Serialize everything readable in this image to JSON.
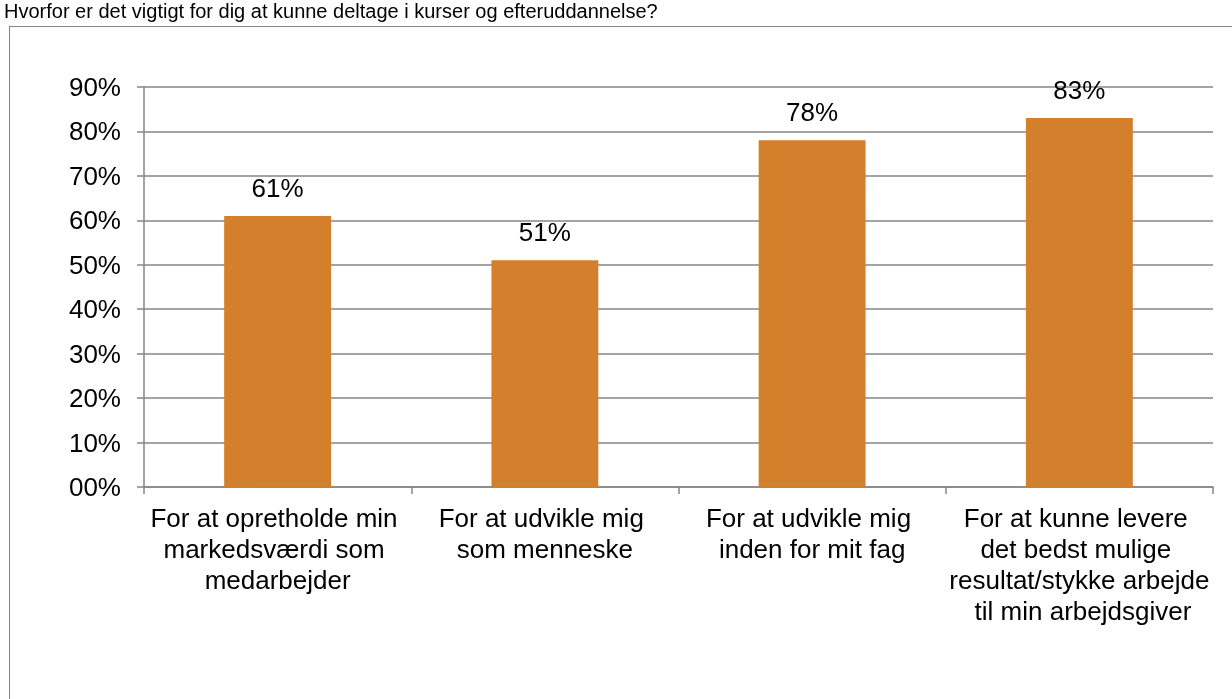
{
  "chart_data": {
    "type": "bar",
    "title": "Hvorfor er det vigtigt for dig at kunne deltage i kurser og efteruddannelse?",
    "categories": [
      "For at opretholde min markedsværdi som medarbejder",
      "For at udvikle mig som menneske",
      "For at udvikle mig inden for mit fag",
      "For at kunne levere det bedst mulige resultat/stykke arbejde til min arbejdsgiver"
    ],
    "values": [
      61,
      51,
      78,
      83
    ],
    "value_labels": [
      "61%",
      "51%",
      "78%",
      "83%"
    ],
    "color": "#d47f2b",
    "ylim": [
      0,
      90
    ],
    "yticks": [
      {
        "value": 0,
        "label": "00%"
      },
      {
        "value": 10,
        "label": "10%"
      },
      {
        "value": 20,
        "label": "20%"
      },
      {
        "value": 30,
        "label": "30%"
      },
      {
        "value": 40,
        "label": "40%"
      },
      {
        "value": 50,
        "label": "50%"
      },
      {
        "value": 60,
        "label": "60%"
      },
      {
        "value": 70,
        "label": "70%"
      },
      {
        "value": 80,
        "label": "80%"
      },
      {
        "value": 90,
        "label": "90%"
      }
    ],
    "grid": "y"
  }
}
